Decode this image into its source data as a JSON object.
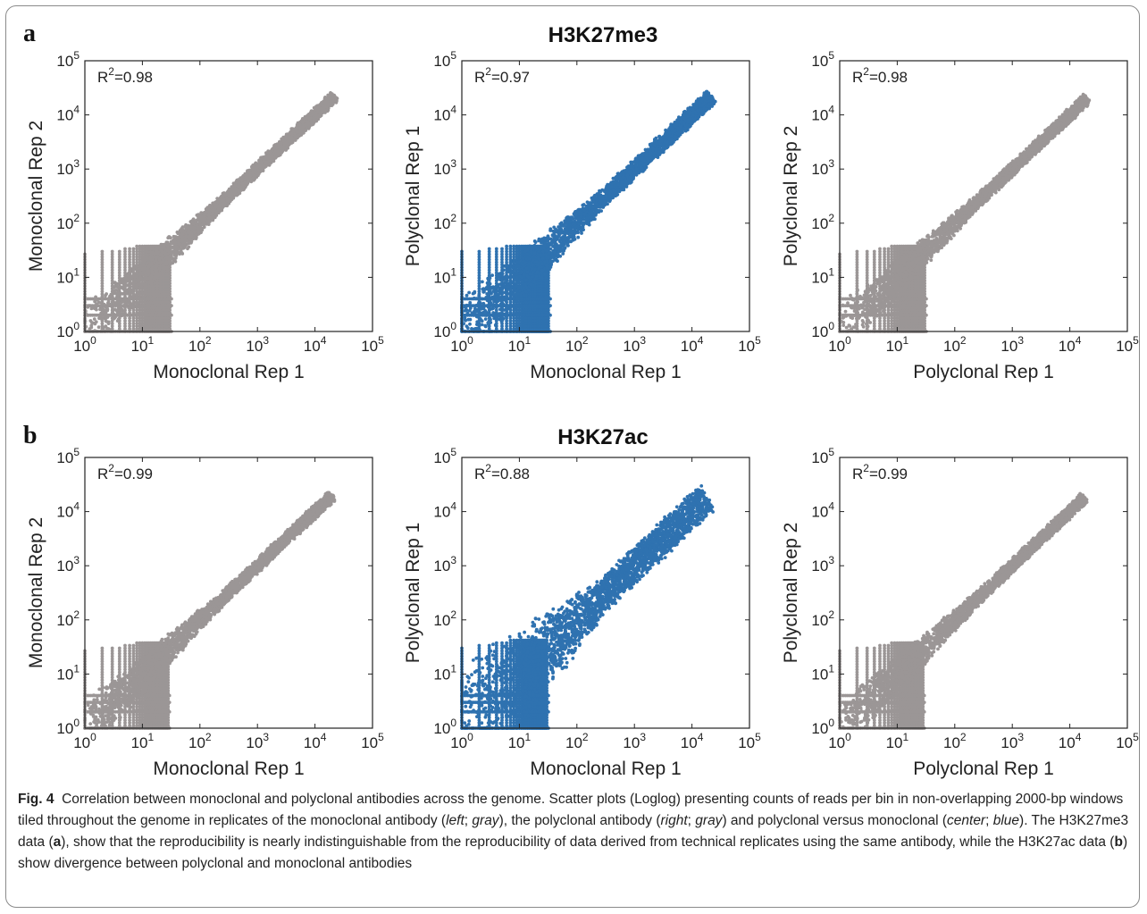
{
  "figure": {
    "rows": [
      {
        "letter": "a",
        "title": "H3K27me3"
      },
      {
        "letter": "b",
        "title": "H3K27ac"
      }
    ],
    "caption": {
      "label": "Fig. 4",
      "text_1": "Correlation between monoclonal and polyclonal antibodies across the genome. Scatter plots (Loglog) presenting counts of reads per bin in non-overlapping 2000-bp windows tiled throughout the genome in replicates of the monoclonal antibody (",
      "left": "left",
      "sep1": "; ",
      "gray1": "gray",
      "text_2": "), the polyclonal antibody (",
      "right": "right",
      "sep2": "; ",
      "gray2": "gray",
      "text_3": ") and polyclonal versus monoclonal (",
      "center": "center",
      "sep3": "; ",
      "blue": "blue",
      "text_4": "). The H3K27me3 data (",
      "a": "a",
      "text_5": "), show that the reproducibility is nearly indistinguishable from the reproducibility of data derived from technical replicates using the same antibody, while the H3K27ac data (",
      "b": "b",
      "text_6": ") show divergence between polyclonal and monoclonal antibodies"
    }
  },
  "colors": {
    "gray": "#9b9696",
    "blue": "#2f72b0"
  },
  "chart_data": [
    {
      "type": "scatter",
      "row": "a",
      "position": "left",
      "xlabel": "Monoclonal Rep 1",
      "ylabel": "Monoclonal Rep 2",
      "annotation": "R^2=0.98",
      "scale": "loglog",
      "xlim": [
        1,
        100000
      ],
      "ylim": [
        1,
        100000
      ],
      "x_ticks": [
        "10^0",
        "10^1",
        "10^2",
        "10^3",
        "10^4",
        "10^5"
      ],
      "y_ticks": [
        "10^0",
        "10^1",
        "10^2",
        "10^3",
        "10^4",
        "10^5"
      ],
      "color": "gray",
      "max_point": [
        22000,
        22000
      ],
      "low_count_cap": 35,
      "low_count_x_end": 30,
      "spread": 0.12
    },
    {
      "type": "scatter",
      "row": "a",
      "position": "center",
      "xlabel": "Monoclonal Rep 1",
      "ylabel": "Polyclonal Rep 1",
      "annotation": "R^2=0.97",
      "scale": "loglog",
      "xlim": [
        1,
        100000
      ],
      "ylim": [
        1,
        100000
      ],
      "x_ticks": [
        "10^0",
        "10^1",
        "10^2",
        "10^3",
        "10^4",
        "10^5"
      ],
      "y_ticks": [
        "10^0",
        "10^1",
        "10^2",
        "10^3",
        "10^4",
        "10^5"
      ],
      "color": "blue",
      "max_point": [
        22000,
        22000
      ],
      "low_count_cap": 38,
      "low_count_x_end": 32,
      "spread": 0.16
    },
    {
      "type": "scatter",
      "row": "a",
      "position": "right",
      "xlabel": "Polyclonal Rep 1",
      "ylabel": "Polyclonal Rep 2",
      "annotation": "R^2=0.98",
      "scale": "loglog",
      "xlim": [
        1,
        100000
      ],
      "ylim": [
        1,
        100000
      ],
      "x_ticks": [
        "10^0",
        "10^1",
        "10^2",
        "10^3",
        "10^4",
        "10^5"
      ],
      "y_ticks": [
        "10^0",
        "10^1",
        "10^2",
        "10^3",
        "10^4",
        "10^5"
      ],
      "color": "gray",
      "max_point": [
        20000,
        20000
      ],
      "low_count_cap": 35,
      "low_count_x_end": 30,
      "spread": 0.12
    },
    {
      "type": "scatter",
      "row": "b",
      "position": "left",
      "xlabel": "Monoclonal Rep 1",
      "ylabel": "Monoclonal Rep 2",
      "annotation": "R^2=0.99",
      "scale": "loglog",
      "xlim": [
        1,
        100000
      ],
      "ylim": [
        1,
        100000
      ],
      "x_ticks": [
        "10^0",
        "10^1",
        "10^2",
        "10^3",
        "10^4",
        "10^5"
      ],
      "y_ticks": [
        "10^0",
        "10^1",
        "10^2",
        "10^3",
        "10^4",
        "10^5"
      ],
      "color": "gray",
      "max_point": [
        20000,
        20000
      ],
      "low_count_cap": 35,
      "low_count_x_end": 28,
      "spread": 0.12
    },
    {
      "type": "scatter",
      "row": "b",
      "position": "center",
      "xlabel": "Monoclonal Rep 1",
      "ylabel": "Polyclonal Rep 1",
      "annotation": "R^2=0.88",
      "scale": "loglog",
      "xlim": [
        1,
        100000
      ],
      "ylim": [
        1,
        100000
      ],
      "x_ticks": [
        "10^0",
        "10^1",
        "10^2",
        "10^3",
        "10^4",
        "10^5"
      ],
      "y_ticks": [
        "10^0",
        "10^1",
        "10^2",
        "10^3",
        "10^4",
        "10^5"
      ],
      "color": "blue",
      "max_point": [
        18000,
        17000
      ],
      "low_count_cap": 40,
      "low_count_x_end": 30,
      "spread": 0.3
    },
    {
      "type": "scatter",
      "row": "b",
      "position": "right",
      "xlabel": "Polyclonal Rep 1",
      "ylabel": "Polyclonal Rep 2",
      "annotation": "R^2=0.99",
      "scale": "loglog",
      "xlim": [
        1,
        100000
      ],
      "ylim": [
        1,
        100000
      ],
      "x_ticks": [
        "10^0",
        "10^1",
        "10^2",
        "10^3",
        "10^4",
        "10^5"
      ],
      "y_ticks": [
        "10^0",
        "10^1",
        "10^2",
        "10^3",
        "10^4",
        "10^5"
      ],
      "color": "gray",
      "max_point": [
        18000,
        18000
      ],
      "low_count_cap": 35,
      "low_count_x_end": 28,
      "spread": 0.12
    }
  ]
}
